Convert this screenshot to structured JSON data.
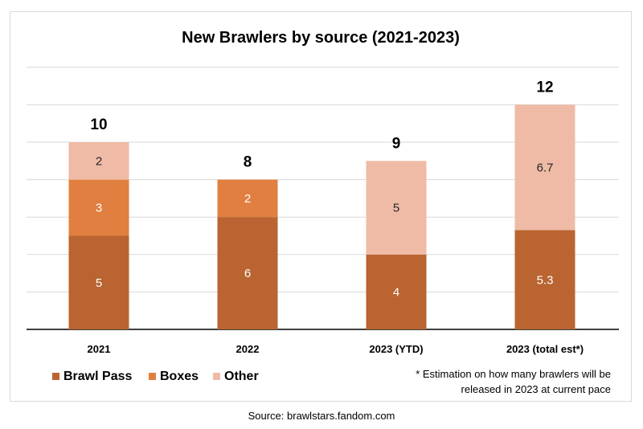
{
  "chart_data": {
    "type": "bar",
    "stacked": true,
    "title": "New Brawlers by source (2021-2023)",
    "xlabel": "",
    "ylabel": "",
    "categories": [
      "2021",
      "2022",
      "2023 (YTD)",
      "2023 (total est*)"
    ],
    "series": [
      {
        "name": "Brawl Pass",
        "values": [
          5,
          6,
          4,
          5.3
        ],
        "labels": [
          "5",
          "6",
          "4",
          "5.3"
        ],
        "color": "#b96431"
      },
      {
        "name": "Boxes",
        "values": [
          3,
          2,
          0,
          0
        ],
        "labels": [
          "3",
          "2",
          "",
          ""
        ],
        "color": "#e07f3f"
      },
      {
        "name": "Other",
        "values": [
          2,
          0,
          5,
          6.7
        ],
        "labels": [
          "2",
          "",
          "5",
          "6.7"
        ],
        "color": "#efbba6"
      }
    ],
    "totals": [
      "10",
      "8",
      "9",
      "12"
    ],
    "ylim": [
      0,
      14
    ],
    "grid": true,
    "legend_position": "bottom-left"
  },
  "footnote": {
    "line1": "* Estimation on how many brawlers will be",
    "line2": "released in 2023 at current pace"
  },
  "source": "Source: brawlstars.fandom.com",
  "colors": {
    "grid": "#d9d9d9",
    "axis": "#000000",
    "label_on_dark": "#ffffff",
    "label_on_light": "#262626"
  }
}
